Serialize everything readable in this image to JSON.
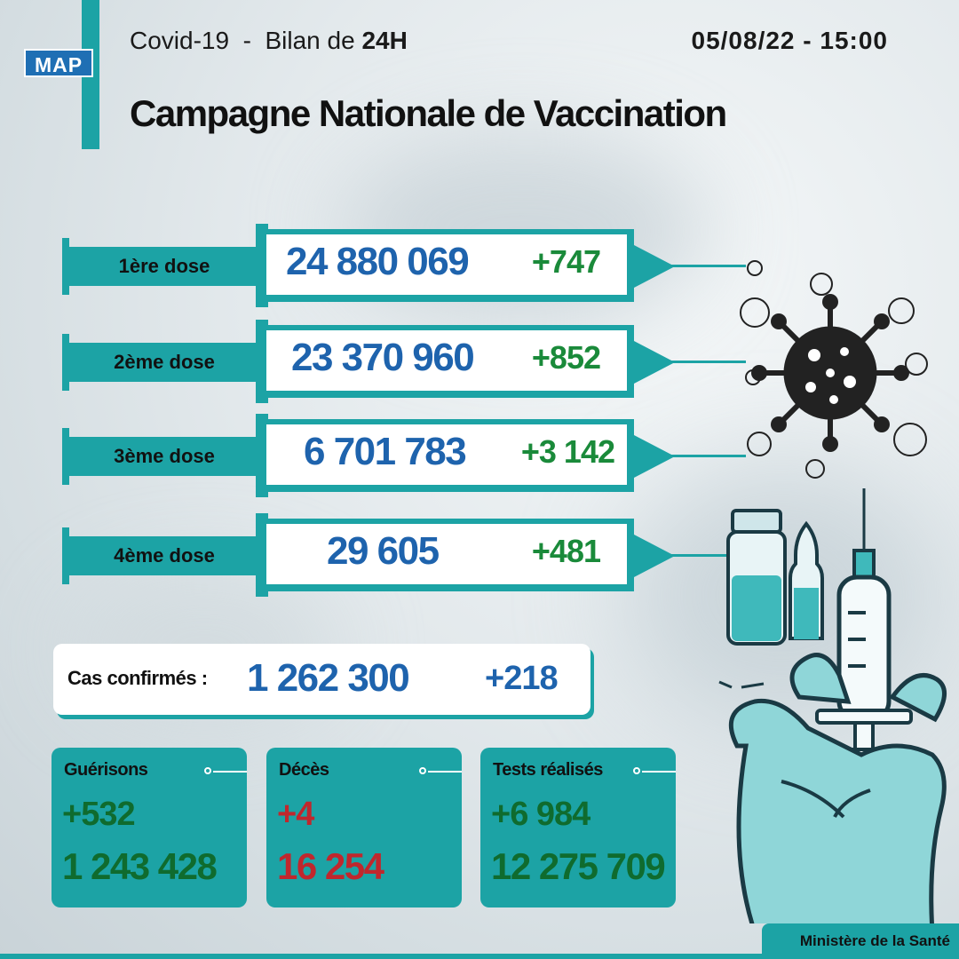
{
  "header": {
    "logo": "MAP",
    "subtitle_prefix": "Covid-19  -  Bilan de ",
    "subtitle_bold": "24H",
    "date": "05/08/22 - 15:00",
    "title": "Campagne Nationale de Vaccination"
  },
  "doses": [
    {
      "label": "1ère dose",
      "total": "24 880 069",
      "delta": "+747"
    },
    {
      "label": "2ème dose",
      "total": "23 370 960",
      "delta": "+852"
    },
    {
      "label": "3ème dose",
      "total": "6 701 783",
      "delta": "+3 142"
    },
    {
      "label": "4ème dose",
      "total": "29 605",
      "delta": "+481"
    }
  ],
  "cases": {
    "label": "Cas confirmés :",
    "total": "1 262 300",
    "delta": "+218"
  },
  "cards": [
    {
      "title": "Guérisons",
      "delta": "+532",
      "total": "1 243 428"
    },
    {
      "title": "Décès",
      "delta": "+4",
      "total": "16 254"
    },
    {
      "title": "Tests réalisés",
      "delta": "+6 984",
      "total": "12 275 709"
    }
  ],
  "footer": "Ministère de la Santé",
  "colors": {
    "teal": "#1ca3a5",
    "blue": "#1e63ad",
    "green": "#1a8a3a",
    "red": "#c0272d"
  },
  "icons": [
    "virus-icon",
    "vial-icon",
    "ampoule-icon",
    "syringe-icon",
    "gloved-hand-icon"
  ]
}
